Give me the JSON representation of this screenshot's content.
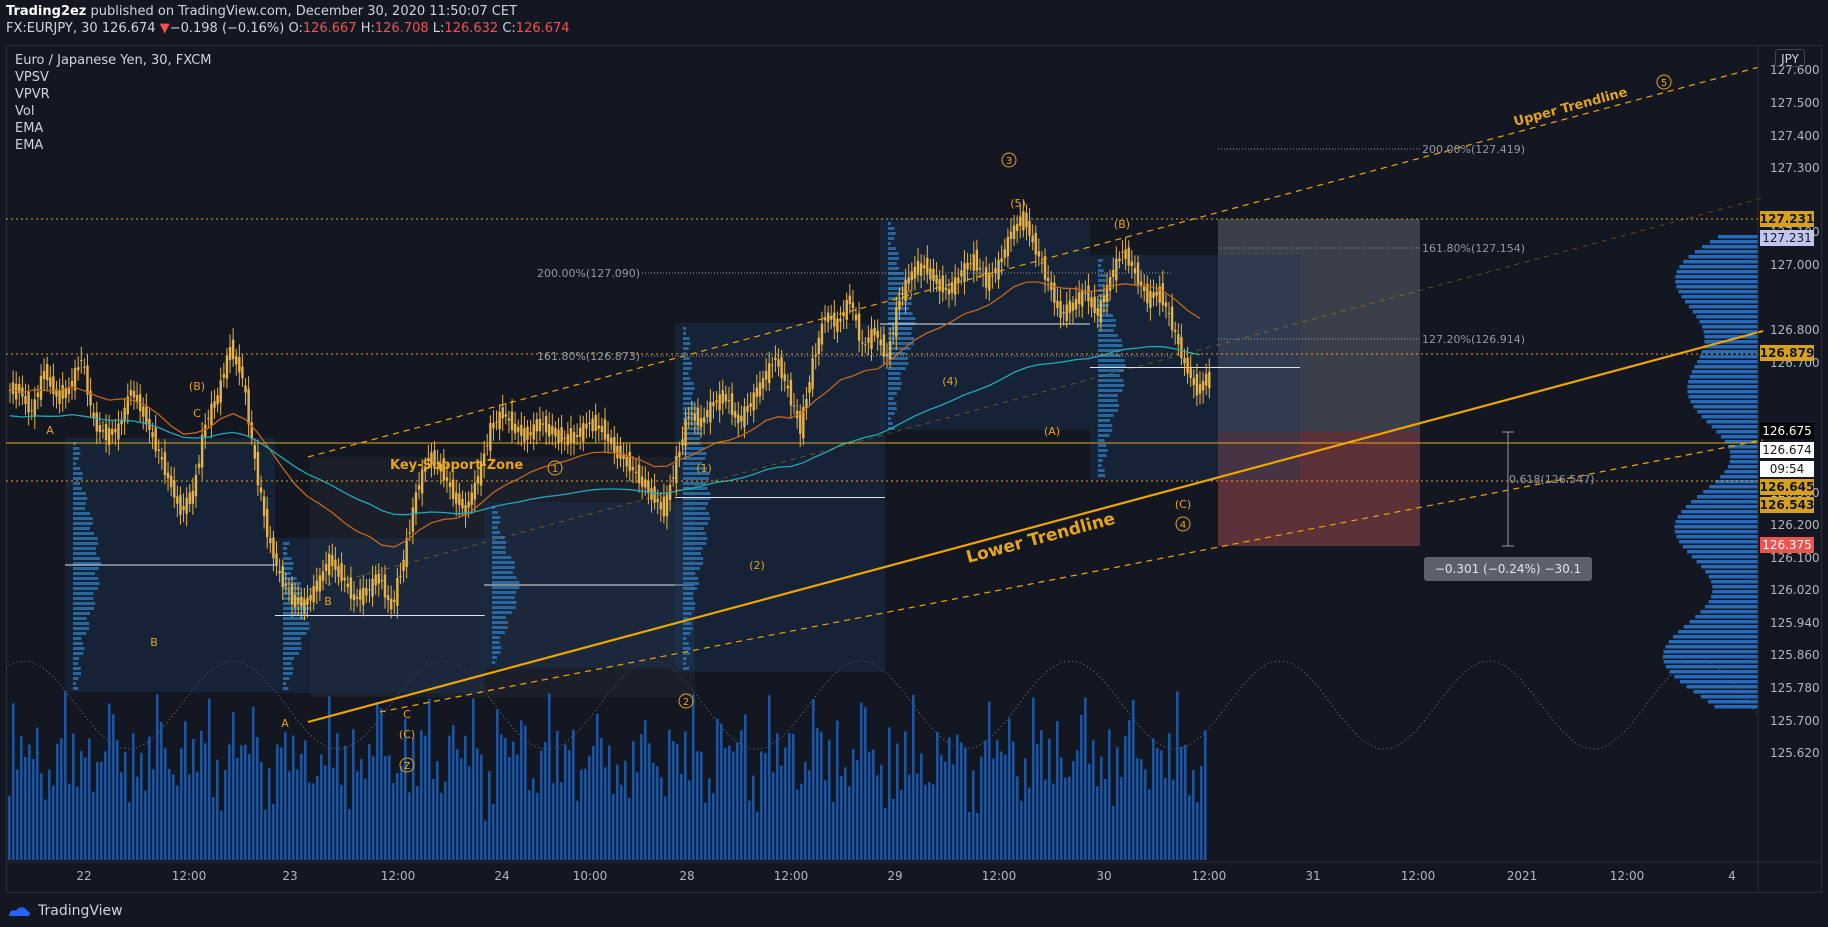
{
  "header": {
    "publisher": "Trading2ez",
    "published_text": " published on TradingView.com, December 30, 2020 11:50:07 CET",
    "symbol": "FX:EURJPY, 30",
    "last": "126.674",
    "change": "−0.198 (−0.16%)",
    "o_label": "O:",
    "o": "126.667",
    "h_label": "H:",
    "h": "126.708",
    "l_label": "L:",
    "l": "126.632",
    "c_label": "C:",
    "c": "126.674"
  },
  "legend": {
    "title": "Euro / Japanese Yen, 30, FXCM",
    "indicators": [
      "VPSV",
      "VPVR",
      "Vol",
      "EMA",
      "EMA"
    ]
  },
  "currency_button": "JPY",
  "footer": {
    "brand": "TradingView"
  },
  "colors": {
    "background": "#131722",
    "candle": "#e6b345",
    "annotation": "#e6a417",
    "trendline": "#f0a500",
    "ema_orange": "#c2661e",
    "ema_teal": "#22a8b8",
    "volume": "#1f5ba8",
    "profile": "#2a79d6"
  },
  "chart_data": {
    "type": "candlestick",
    "title": "Euro / Japanese Yen, 30, FXCM",
    "y_axis": {
      "ticks": [
        "127.600",
        "127.500",
        "127.400",
        "127.300",
        "127.100",
        "127.000",
        "126.800",
        "126.700",
        "126.300",
        "126.200",
        "126.100",
        "126.020",
        "125.940",
        "125.860",
        "125.780",
        "125.700",
        "125.620"
      ],
      "range": [
        125.55,
        127.65
      ],
      "price_labels": [
        {
          "text": "127.231",
          "style": "gold"
        },
        {
          "text": "127.231",
          "style": "lavender"
        },
        {
          "text": "126.879",
          "style": "gold"
        },
        {
          "text": "126.675",
          "style": "black"
        },
        {
          "text": "126.674",
          "style": "white"
        },
        {
          "text": "09:54",
          "style": "white"
        },
        {
          "text": "126.645",
          "style": "gold"
        },
        {
          "text": "126.543",
          "style": "gold"
        },
        {
          "text": "126.375",
          "style": "red"
        }
      ]
    },
    "x_axis": {
      "ticks": [
        "22",
        "12:00",
        "23",
        "12:00",
        "24",
        "10:00",
        "28",
        "12:00",
        "29",
        "12:00",
        "30",
        "12:00",
        "31",
        "12:00",
        "2021",
        "12:00",
        "4"
      ]
    },
    "close_series": [
      126.62,
      126.55,
      126.68,
      126.6,
      126.62,
      126.72,
      126.52,
      126.48,
      126.5,
      126.62,
      126.55,
      126.45,
      126.35,
      126.25,
      126.3,
      126.52,
      126.6,
      126.75,
      126.66,
      126.4,
      126.18,
      126.05,
      125.98,
      125.96,
      126.02,
      126.1,
      126.05,
      125.98,
      126.0,
      126.05,
      125.95,
      126.1,
      126.3,
      126.42,
      126.38,
      126.3,
      126.25,
      126.35,
      126.5,
      126.55,
      126.5,
      126.48,
      126.52,
      126.49,
      126.47,
      126.48,
      126.52,
      126.5,
      126.44,
      126.4,
      126.35,
      126.3,
      126.25,
      126.4,
      126.55,
      126.52,
      126.58,
      126.6,
      126.52,
      126.58,
      126.65,
      126.72,
      126.62,
      126.5,
      126.7,
      126.85,
      126.82,
      126.9,
      126.75,
      126.8,
      126.72,
      126.9,
      126.98,
      127.0,
      126.95,
      126.92,
      126.98,
      127.02,
      126.95,
      127.0,
      127.1,
      127.15,
      127.05,
      126.95,
      126.85,
      126.88,
      126.92,
      126.85,
      126.96,
      127.05,
      126.98,
      126.9,
      126.92,
      126.82,
      126.7,
      126.62,
      126.66
    ],
    "annotations": {
      "texts": [
        "Key-Support-Zone",
        "Upper Trendline",
        "Lower Trendline"
      ],
      "wave_labels": [
        "A",
        "(B)",
        "C",
        "B",
        "A",
        "C",
        "(C)",
        "B",
        "(1)",
        "(2)",
        "(3)",
        "(4)",
        "(5)",
        "(A)",
        "(B)",
        "(C)"
      ],
      "circled": [
        "1",
        "2",
        "3",
        "4",
        "5",
        "Z"
      ],
      "fib_levels": [
        "200.00%(127.419)",
        "161.80%(127.154)",
        "127.20%(126.914)",
        "200.00%(127.090)",
        "161.80%(126.873)",
        "0.618(126.547)"
      ],
      "measure_box": "−0.301 (−0.24%) −30.1"
    }
  }
}
